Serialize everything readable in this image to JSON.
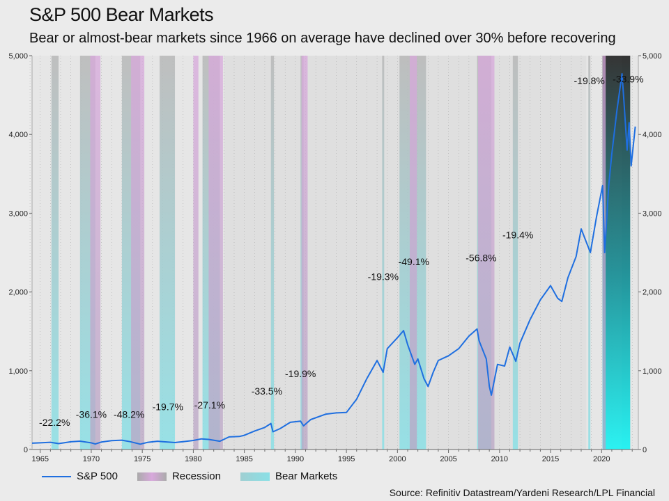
{
  "title": "S&P 500 Bear Markets",
  "subtitle": "Bear or almost-bear markets since 1966 on average have declined over 30% before recovering",
  "source": "Source: Refinitiv Datastream/Yardeni Research/LPL Financial",
  "legend": {
    "sp500": "S&P 500",
    "recession": "Recession",
    "bear": "Bear Markets"
  },
  "colors": {
    "line": "#1f6fe0",
    "recession": "#d8a8dc",
    "bear": "#8ae0e6",
    "background": "#ebebeb",
    "plot": "#e6e6e6"
  },
  "chart_data": {
    "type": "line",
    "title": "S&P 500 Bear Markets",
    "xlim": [
      1964.2,
      2023.6
    ],
    "ylim": [
      0,
      5000
    ],
    "x_ticks": [
      1965,
      1970,
      1975,
      1980,
      1985,
      1990,
      1995,
      2000,
      2005,
      2010,
      2015,
      2020
    ],
    "x_tick_labels": [
      "1965",
      "1970",
      "1975",
      "1980",
      "1985",
      "1990",
      "1995",
      "2000",
      "2005",
      "2010",
      "2015",
      "2020"
    ],
    "y_ticks": [
      0,
      1000,
      2000,
      3000,
      4000,
      5000
    ],
    "y_tick_labels": [
      "0",
      "1,000",
      "2,000",
      "3,000",
      "4,000",
      "5,000"
    ],
    "grid": "vertical dotted",
    "legend_position": "bottom",
    "series": [
      {
        "name": "S&P 500",
        "points": [
          [
            1964.2,
            80
          ],
          [
            1965,
            85
          ],
          [
            1966,
            92
          ],
          [
            1966.8,
            75
          ],
          [
            1968,
            98
          ],
          [
            1968.9,
            106
          ],
          [
            1970,
            85
          ],
          [
            1970.4,
            70
          ],
          [
            1971,
            95
          ],
          [
            1972,
            112
          ],
          [
            1973,
            118
          ],
          [
            1973.8,
            100
          ],
          [
            1974.8,
            68
          ],
          [
            1975.5,
            90
          ],
          [
            1976.5,
            105
          ],
          [
            1977,
            100
          ],
          [
            1978.2,
            88
          ],
          [
            1979,
            100
          ],
          [
            1980,
            115
          ],
          [
            1980.8,
            135
          ],
          [
            1981.5,
            128
          ],
          [
            1982.6,
            105
          ],
          [
            1983.5,
            160
          ],
          [
            1984.5,
            165
          ],
          [
            1985,
            180
          ],
          [
            1986,
            235
          ],
          [
            1987,
            280
          ],
          [
            1987.6,
            330
          ],
          [
            1987.8,
            225
          ],
          [
            1988.5,
            265
          ],
          [
            1989.5,
            345
          ],
          [
            1990.5,
            360
          ],
          [
            1990.8,
            300
          ],
          [
            1991.5,
            380
          ],
          [
            1993,
            450
          ],
          [
            1994,
            465
          ],
          [
            1995,
            470
          ],
          [
            1996,
            640
          ],
          [
            1997,
            900
          ],
          [
            1998,
            1130
          ],
          [
            1998.6,
            980
          ],
          [
            1999,
            1280
          ],
          [
            2000,
            1420
          ],
          [
            2000.6,
            1510
          ],
          [
            2001,
            1330
          ],
          [
            2001.7,
            1080
          ],
          [
            2002,
            1150
          ],
          [
            2002.6,
            900
          ],
          [
            2003,
            800
          ],
          [
            2003.5,
            980
          ],
          [
            2004,
            1130
          ],
          [
            2005,
            1190
          ],
          [
            2006,
            1280
          ],
          [
            2007,
            1440
          ],
          [
            2007.8,
            1530
          ],
          [
            2008,
            1380
          ],
          [
            2008.7,
            1150
          ],
          [
            2009,
            800
          ],
          [
            2009.2,
            690
          ],
          [
            2009.8,
            1080
          ],
          [
            2010.5,
            1060
          ],
          [
            2011,
            1300
          ],
          [
            2011.6,
            1120
          ],
          [
            2012,
            1350
          ],
          [
            2013,
            1650
          ],
          [
            2014,
            1900
          ],
          [
            2015,
            2080
          ],
          [
            2015.7,
            1920
          ],
          [
            2016.1,
            1880
          ],
          [
            2016.7,
            2180
          ],
          [
            2017.5,
            2450
          ],
          [
            2018,
            2800
          ],
          [
            2018.9,
            2500
          ],
          [
            2019.5,
            2950
          ],
          [
            2020.1,
            3350
          ],
          [
            2020.3,
            2500
          ],
          [
            2020.7,
            3350
          ],
          [
            2021,
            3750
          ],
          [
            2021.5,
            4300
          ],
          [
            2022,
            4770
          ],
          [
            2022.2,
            4400
          ],
          [
            2022.5,
            3800
          ],
          [
            2022.7,
            4150
          ],
          [
            2022.9,
            3600
          ],
          [
            2023.3,
            4100
          ]
        ]
      }
    ],
    "recessions": [
      [
        1969.9,
        1970.9
      ],
      [
        1973.9,
        1975.2
      ],
      [
        1980.0,
        1980.5
      ],
      [
        1981.5,
        1982.9
      ],
      [
        1990.6,
        1991.2
      ],
      [
        2001.2,
        2001.9
      ],
      [
        2007.9,
        2009.5
      ],
      [
        2020.1,
        2020.4
      ]
    ],
    "bear_markets": [
      [
        1966.1,
        1966.8
      ],
      [
        1968.9,
        1970.4
      ],
      [
        1973.0,
        1974.8
      ],
      [
        1976.7,
        1978.2
      ],
      [
        1980.9,
        1982.6
      ],
      [
        1987.6,
        1987.9
      ],
      [
        1990.5,
        1990.8
      ],
      [
        1998.5,
        1998.7
      ],
      [
        2000.2,
        2002.8
      ],
      [
        2007.8,
        2009.2
      ],
      [
        2011.3,
        2011.8
      ],
      [
        2018.7,
        2018.9
      ],
      [
        2020.1,
        2020.3
      ],
      [
        2022.0,
        2022.8
      ]
    ],
    "annotations": [
      {
        "text": "-22.2%",
        "x": 1966.4,
        "y": 300
      },
      {
        "text": "-36.1%",
        "x": 1970.0,
        "y": 400
      },
      {
        "text": "-48.2%",
        "x": 1973.7,
        "y": 400
      },
      {
        "text": "-19.7%",
        "x": 1977.5,
        "y": 500
      },
      {
        "text": "-27.1%",
        "x": 1981.6,
        "y": 520
      },
      {
        "text": "-33.5%",
        "x": 1987.2,
        "y": 700
      },
      {
        "text": "-19.9%",
        "x": 1990.5,
        "y": 920
      },
      {
        "text": "-19.3%",
        "x": 1998.6,
        "y": 2150
      },
      {
        "text": "-49.1%",
        "x": 2001.6,
        "y": 2340
      },
      {
        "text": "-56.8%",
        "x": 2008.2,
        "y": 2390
      },
      {
        "text": "-19.4%",
        "x": 2011.8,
        "y": 2680
      },
      {
        "text": "-19.8%",
        "x": 2018.8,
        "y": 4640
      },
      {
        "text": "-33.9%",
        "x": 2022.6,
        "y": 4660
      }
    ]
  }
}
